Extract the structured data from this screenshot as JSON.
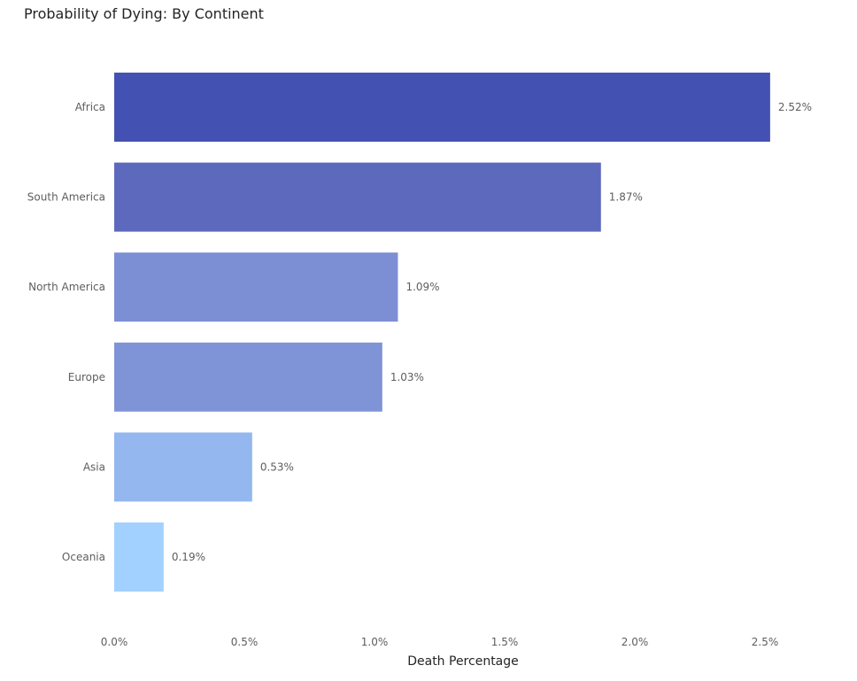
{
  "chart_data": {
    "type": "bar",
    "orientation": "horizontal",
    "title": "Probability of Dying: By Continent",
    "xlabel": "Death Percentage",
    "ylabel": "",
    "categories": [
      "Africa",
      "South America",
      "North America",
      "Europe",
      "Asia",
      "Oceania"
    ],
    "values": [
      2.52,
      1.87,
      1.09,
      1.03,
      0.53,
      0.19
    ],
    "value_labels": [
      "2.52%",
      "1.87%",
      "1.09%",
      "1.03%",
      "0.53%",
      "0.19%"
    ],
    "xlim": [
      0,
      2.5
    ],
    "x_ticks": [
      0,
      0.5,
      1.0,
      1.5,
      2.0,
      2.5
    ],
    "x_tick_labels": [
      "0.0%",
      "0.5%",
      "1.0%",
      "1.5%",
      "2.0%",
      "2.5%"
    ],
    "colors": [
      "#4351B2",
      "#5D69BC",
      "#7C8FD4",
      "#7F94D6",
      "#93B7EE",
      "#A2D1FF"
    ],
    "grid": false,
    "legend": "none"
  }
}
